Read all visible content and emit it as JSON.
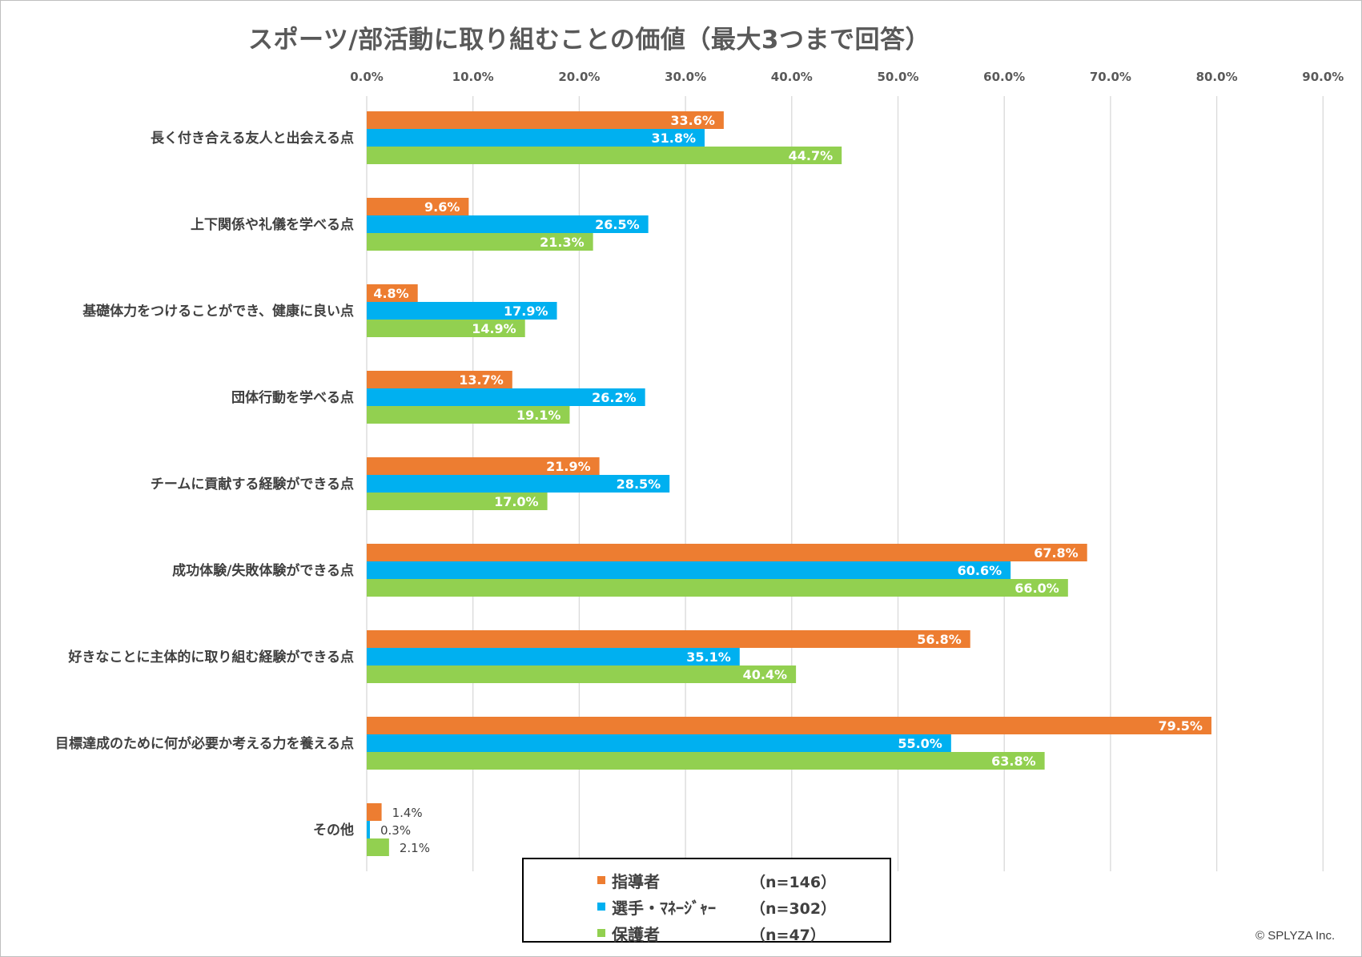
{
  "chart_data": {
    "type": "bar",
    "orientation": "horizontal",
    "title": "スポーツ/部活動に取り組むことの価値（最大3つまで回答）",
    "xlim": [
      0,
      90
    ],
    "ticks": [
      0,
      10,
      20,
      30,
      40,
      50,
      60,
      70,
      80,
      90
    ],
    "tick_labels": [
      "0.0%",
      "10.0%",
      "20.0%",
      "30.0%",
      "40.0%",
      "50.0%",
      "60.0%",
      "70.0%",
      "80.0%",
      "90.0%"
    ],
    "grid": true,
    "categories": [
      "長く付き合える友人と出会える点",
      "上下関係や礼儀を学べる点",
      "基礎体力をつけることができ、健康に良い点",
      "団体行動を学べる点",
      "チームに貢献する経験ができる点",
      "成功体験/失敗体験ができる点",
      "好きなことに主体的に取り組む経験ができる点",
      "目標達成のために何が必要か考える力を養える点",
      "その他"
    ],
    "series": [
      {
        "name": "指導者",
        "color": "#ED7D31",
        "values": [
          33.6,
          9.6,
          4.8,
          13.7,
          21.9,
          67.8,
          56.8,
          79.5,
          1.4
        ],
        "labels": [
          "33.6%",
          "9.6%",
          "4.8%",
          "13.7%",
          "21.9%",
          "67.8%",
          "56.8%",
          "79.5%",
          "1.4%"
        ]
      },
      {
        "name": "選手・ﾏﾈｰｼﾞｬｰ",
        "color": "#00B0F0",
        "values": [
          31.8,
          26.5,
          17.9,
          26.2,
          28.5,
          60.6,
          35.1,
          55.0,
          0.3
        ],
        "labels": [
          "31.8%",
          "26.5%",
          "17.9%",
          "26.2%",
          "28.5%",
          "60.6%",
          "35.1%",
          "55.0%",
          "0.3%"
        ]
      },
      {
        "name": "保護者",
        "color": "#92D050",
        "values": [
          44.7,
          21.3,
          14.9,
          19.1,
          17.0,
          66.0,
          40.4,
          63.8,
          2.1
        ],
        "labels": [
          "44.7%",
          "21.3%",
          "14.9%",
          "19.1%",
          "17.0%",
          "66.0%",
          "40.4%",
          "63.8%",
          "2.1%"
        ]
      }
    ],
    "legend_position": "bottom"
  },
  "legend": [
    {
      "label": "指導者",
      "n": "（n=146）",
      "color": "#ED7D31"
    },
    {
      "label": "選手・ﾏﾈｰｼﾞｬｰ",
      "n": "（n=302）",
      "color": "#00B0F0"
    },
    {
      "label": "保護者",
      "n": "（n=47）",
      "color": "#92D050"
    }
  ],
  "copyright": "© SPLYZA Inc."
}
